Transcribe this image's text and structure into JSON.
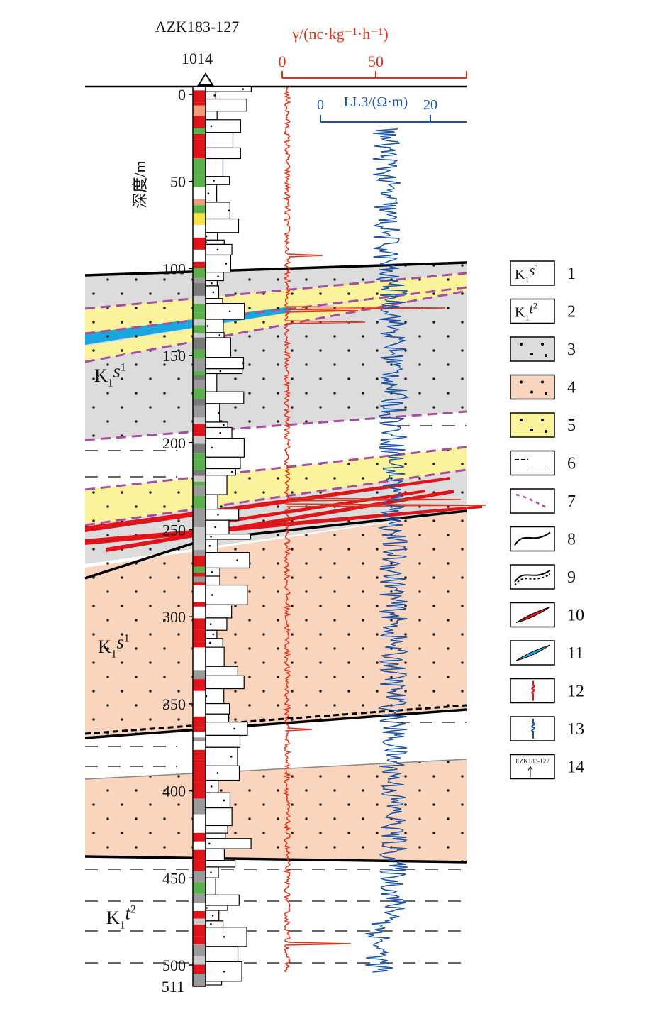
{
  "well": {
    "name": "AZK183-127",
    "elevation": "1014"
  },
  "depth_axis": {
    "label": "深度/m",
    "ticks": [
      "0",
      "50",
      "100",
      "150",
      "200",
      "250",
      "300",
      "350",
      "400",
      "450",
      "500"
    ],
    "bottom": "511"
  },
  "gamma_axis": {
    "label": "γ/(nc·kg⁻¹·h⁻¹)",
    "ticks": [
      "0",
      "50"
    ]
  },
  "resistivity_axis": {
    "label": "LL3/(Ω·m)",
    "ticks": [
      "0",
      "20"
    ]
  },
  "formations": [
    {
      "parts": [
        "K",
        "1",
        "s",
        "1"
      ]
    },
    {
      "parts": [
        "K",
        "1",
        "s",
        "1"
      ]
    },
    {
      "parts": [
        "K",
        "1",
        "t",
        "2"
      ]
    }
  ],
  "legend": [
    {
      "number": "1",
      "box": [
        "K",
        "1",
        "s",
        "1"
      ]
    },
    {
      "number": "2",
      "box": [
        "K",
        "1",
        "t",
        "2"
      ]
    },
    {
      "number": "3"
    },
    {
      "number": "4"
    },
    {
      "number": "5"
    },
    {
      "number": "6"
    },
    {
      "number": "7"
    },
    {
      "number": "8"
    },
    {
      "number": "9"
    },
    {
      "number": "10"
    },
    {
      "number": "11"
    },
    {
      "number": "12"
    },
    {
      "number": "13"
    },
    {
      "number": "14",
      "box": "EZK183-127"
    }
  ]
}
